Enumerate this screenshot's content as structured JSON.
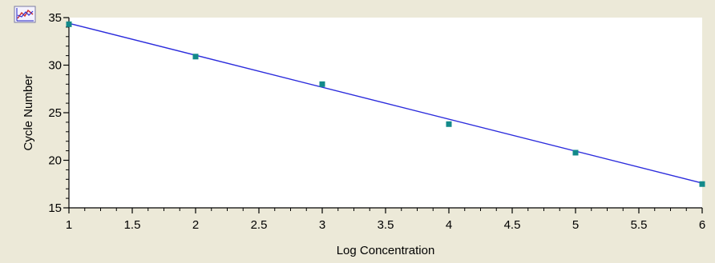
{
  "chart_data": {
    "type": "scatter",
    "xlabel": "Log Concentration",
    "ylabel": "Cycle Number",
    "xlim": [
      1,
      6
    ],
    "ylim": [
      15,
      35
    ],
    "x_major_ticks": [
      1,
      1.5,
      2,
      2.5,
      3,
      3.5,
      4,
      4.5,
      5,
      5.5,
      6
    ],
    "x_tick_labels": [
      "1",
      "1.5",
      "2",
      "2.5",
      "3",
      "3.5",
      "4",
      "4.5",
      "5",
      "5.5",
      "6"
    ],
    "y_major_ticks": [
      15,
      20,
      25,
      30,
      35
    ],
    "y_tick_labels": [
      "15",
      "20",
      "25",
      "30",
      "35"
    ],
    "grid": false,
    "series": [
      {
        "x": [
          1,
          2,
          3,
          4,
          5,
          6
        ],
        "y": [
          34.3,
          30.9,
          28.0,
          23.8,
          20.8,
          17.5
        ],
        "color": "#138a8a",
        "marker": "square"
      }
    ],
    "trendline": {
      "x": [
        1,
        6
      ],
      "y": [
        34.4,
        17.6
      ],
      "color": "#2b2bdc"
    }
  },
  "toolbar": {
    "chart_icon": "chart-icon"
  }
}
